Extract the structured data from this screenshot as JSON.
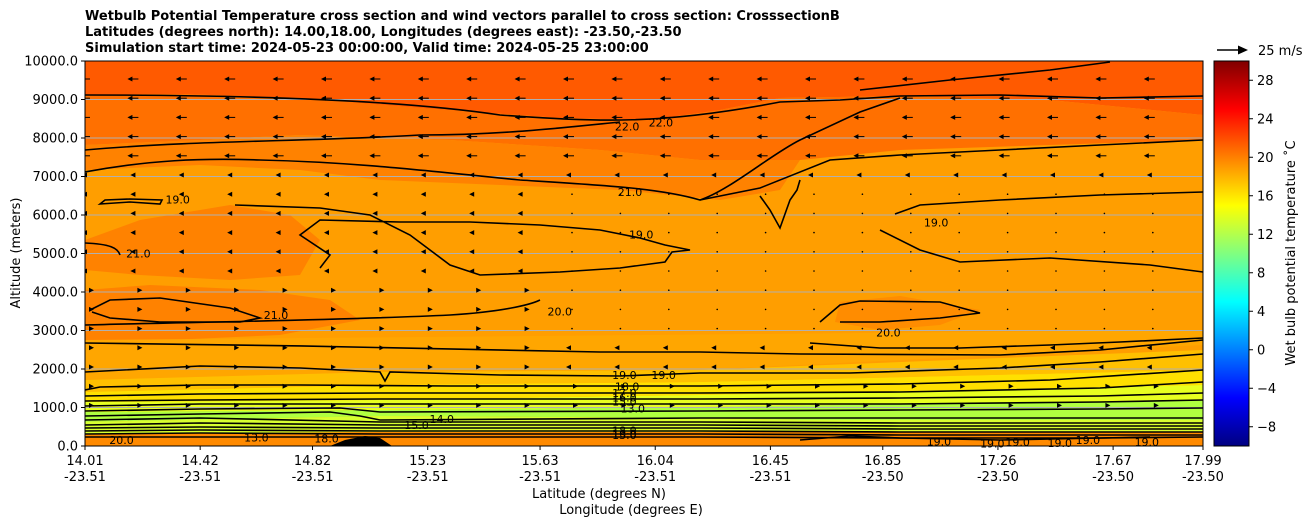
{
  "header": {
    "title_line1": "Wetbulb Potential Temperature cross section and wind vectors parallel to cross section: CrosssectionB",
    "title_line2": "Latitudes (degrees north): 14.00,18.00, Longitudes (degrees east): -23.50,-23.50",
    "title_line3": "Simulation start time: 2024-05-23 00:00:00, Valid time: 2024-05-25 23:00:00"
  },
  "chart_data": {
    "type": "contour",
    "ylabel": "Altitude (meters)",
    "xlabel_lat": "Latitude (degrees N)",
    "xlabel_lon": "Longitude (degrees E)",
    "ylim": [
      0,
      10000
    ],
    "yticks": [
      "0.0",
      "1000.0",
      "2000.0",
      "3000.0",
      "4000.0",
      "5000.0",
      "6000.0",
      "7000.0",
      "8000.0",
      "9000.0",
      "10000.0"
    ],
    "xticks": [
      {
        "lat": "14.01",
        "lon": "-23.51"
      },
      {
        "lat": "14.42",
        "lon": "-23.51"
      },
      {
        "lat": "14.82",
        "lon": "-23.51"
      },
      {
        "lat": "15.23",
        "lon": "-23.51"
      },
      {
        "lat": "15.63",
        "lon": "-23.51"
      },
      {
        "lat": "16.04",
        "lon": "-23.51"
      },
      {
        "lat": "16.45",
        "lon": "-23.51"
      },
      {
        "lat": "16.85",
        "lon": "-23.50"
      },
      {
        "lat": "17.26",
        "lon": "-23.50"
      },
      {
        "lat": "17.67",
        "lon": "-23.50"
      },
      {
        "lat": "17.99",
        "lon": "-23.50"
      }
    ],
    "grid": "horizontal",
    "colorbar": {
      "label": "Wet bulb potential temperature ˚C",
      "range": [
        -10,
        30
      ],
      "ticks": [
        "−8",
        "−4",
        "0",
        "4",
        "8",
        "12",
        "16",
        "20",
        "24",
        "28"
      ],
      "colors": [
        "#000080",
        "#0000ff",
        "#0080ff",
        "#00ffff",
        "#80ff80",
        "#ffff00",
        "#ff8000",
        "#ff0000",
        "#800000"
      ]
    },
    "quiver_key": "25 m/s",
    "contour_labels": [
      {
        "text": "22.0",
        "alt": 8300,
        "lat": 15.94
      },
      {
        "text": "22.0",
        "alt": 8400,
        "lat": 16.06
      },
      {
        "text": "21.0",
        "alt": 6600,
        "lat": 15.95
      },
      {
        "text": "19.0",
        "alt": 6400,
        "lat": 14.34
      },
      {
        "text": "19.0",
        "alt": 5500,
        "lat": 15.99
      },
      {
        "text": "19.0",
        "alt": 5800,
        "lat": 17.04
      },
      {
        "text": "21.0",
        "alt": 5000,
        "lat": 14.2
      },
      {
        "text": "21.0",
        "alt": 3400,
        "lat": 14.69
      },
      {
        "text": "20.0",
        "alt": 3500,
        "lat": 15.7
      },
      {
        "text": "20.0",
        "alt": 2950,
        "lat": 16.87
      },
      {
        "text": "19.0",
        "alt": 1850,
        "lat": 15.93
      },
      {
        "text": "19.0",
        "alt": 1850,
        "lat": 16.07
      },
      {
        "text": "18.0",
        "alt": 1550,
        "lat": 15.94
      },
      {
        "text": "17.0",
        "alt": 1380,
        "lat": 15.93
      },
      {
        "text": "16.0",
        "alt": 1260,
        "lat": 15.93
      },
      {
        "text": "15.0",
        "alt": 1150,
        "lat": 15.93
      },
      {
        "text": "13.0",
        "alt": 980,
        "lat": 15.96
      },
      {
        "text": "14.0",
        "alt": 700,
        "lat": 15.28
      },
      {
        "text": "15.0",
        "alt": 550,
        "lat": 15.19
      },
      {
        "text": "18.0",
        "alt": 400,
        "lat": 15.93
      },
      {
        "text": "16.0",
        "alt": 320,
        "lat": 15.93
      },
      {
        "text": "13.0",
        "alt": 280,
        "lat": 15.93
      },
      {
        "text": "20.0",
        "alt": 150,
        "lat": 14.14
      },
      {
        "text": "13.0",
        "alt": 220,
        "lat": 14.62
      },
      {
        "text": "18.0",
        "alt": 200,
        "lat": 14.87
      },
      {
        "text": "19.0",
        "alt": 120,
        "lat": 17.05
      },
      {
        "text": "19.0",
        "alt": 70,
        "lat": 17.24
      },
      {
        "text": "19.0",
        "alt": 100,
        "lat": 17.33
      },
      {
        "text": "19.0",
        "alt": 80,
        "lat": 17.48
      },
      {
        "text": "19.0",
        "alt": 150,
        "lat": 17.58
      },
      {
        "text": "19.0",
        "alt": 100,
        "lat": 17.79
      }
    ]
  }
}
